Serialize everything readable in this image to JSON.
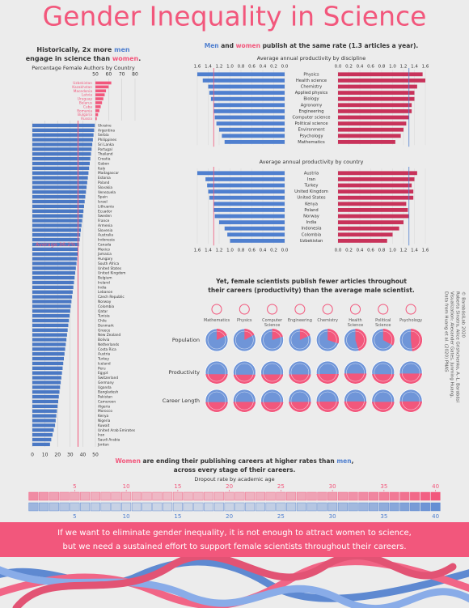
{
  "header": {
    "title": "Gender Inequality in Science"
  },
  "chart_data": [
    {
      "type": "bar",
      "heading_lines": [
        [
          {
            "text": "Historically, 2x more "
          },
          {
            "text": "men",
            "color": "#4f7fcf"
          }
        ],
        [
          {
            "text": "engage in science than "
          },
          {
            "text": "women",
            "color": "#f2577c"
          },
          {
            "text": "."
          }
        ]
      ],
      "subtitle": "Percentage Female Authors by Country",
      "categories": [
        "Uzbekistan",
        "Kazakhstan",
        "Macedonia",
        "Latvia",
        "Uruguay",
        "Belarus",
        "Cuba",
        "Romania",
        "Bulgaria",
        "Russia"
      ],
      "values": [
        62,
        60,
        58,
        57,
        56,
        55,
        54,
        53,
        52,
        51
      ],
      "color": "#f2577c",
      "xlim": [
        50,
        80
      ],
      "xticks": [
        50,
        60,
        70,
        80
      ],
      "grid": true
    },
    {
      "type": "bar",
      "categories": [
        "Ukraine",
        "Argentina",
        "Serbia",
        "Philippines",
        "Sri Lanka",
        "Portugal",
        "Thailand",
        "Croatia",
        "Gabon",
        "Italy",
        "Madagascar",
        "Estonia",
        "Poland",
        "Slovakia",
        "Venezuela",
        "Spain",
        "Israel",
        "Lithuania",
        "Ecuador",
        "Sweden",
        "France",
        "Armenia",
        "Slovenia",
        "Australia",
        "Indonesia",
        "Canada",
        "Mexico",
        "Jamaica",
        "Hungary",
        "South Africa",
        "United States",
        "United Kingdom",
        "Belgium",
        "Ireland",
        "India",
        "Lebanon",
        "Czech Republic",
        "Norway",
        "Colombia",
        "Qatar",
        "Tunisia",
        "Chile",
        "Denmark",
        "Greece",
        "New Zealand",
        "Bolivia",
        "Netherlands",
        "Costa Rica",
        "Austria",
        "Turkey",
        "Iceland",
        "Peru",
        "Egypt",
        "Switzerland",
        "Germany",
        "Uganda",
        "Bangladesh",
        "Pakistan",
        "Cameroon",
        "Algeria",
        "Morocco",
        "Kenya",
        "Nigeria",
        "Kuwait",
        "United Arab Emirates",
        "Iran",
        "Saudi Arabia",
        "Jordan"
      ],
      "values": [
        49.5,
        49,
        48.5,
        48,
        47.5,
        47,
        46.5,
        46,
        45.5,
        45,
        44.5,
        44,
        43.5,
        43,
        42.5,
        42,
        41.5,
        41,
        40.5,
        40,
        39.5,
        39,
        38.5,
        38,
        37.5,
        37,
        36.5,
        36,
        35.5,
        35,
        34.5,
        34,
        33.5,
        33,
        32.5,
        32,
        31.5,
        31,
        30.5,
        30,
        29.5,
        29,
        28.5,
        28,
        27.5,
        27,
        26.5,
        26,
        25.5,
        25,
        24.5,
        24,
        23.5,
        23,
        22.5,
        22,
        21.5,
        21,
        20.5,
        20,
        19.5,
        19,
        18.5,
        18,
        17,
        16,
        15,
        14
      ],
      "color": "#4a78c4",
      "xlim": [
        0,
        50
      ],
      "xticks": [
        0,
        10,
        20,
        30,
        40,
        50
      ],
      "grid": true,
      "annotation": {
        "value": 36.2,
        "label": "Average 36.2%",
        "color": "#f2577c"
      }
    },
    {
      "type": "butterfly",
      "heading_lines": [
        [
          {
            "text": "Men",
            "color": "#4f7fcf"
          },
          {
            "text": " and "
          },
          {
            "text": "women",
            "color": "#f2577c"
          },
          {
            "text": " publish at the same rate (1.3 articles a year)."
          }
        ]
      ],
      "subtitle": "Average annual productivity by discipline",
      "categories": [
        "Physics",
        "Health science",
        "Chemistry",
        "Applied physics",
        "Biology",
        "Agronomy",
        "Engineering",
        "Computer science",
        "Political science",
        "Environment",
        "Psychology",
        "Mathematics"
      ],
      "series": [
        {
          "color": "#4f7fcf",
          "values": [
            1.6,
            1.5,
            1.4,
            1.38,
            1.35,
            1.3,
            1.3,
            1.28,
            1.25,
            1.2,
            1.15,
            1.1
          ]
        },
        {
          "color": "#c8325a",
          "values": [
            1.55,
            1.6,
            1.45,
            1.4,
            1.4,
            1.35,
            1.35,
            1.3,
            1.25,
            1.2,
            1.15,
            1.05
          ]
        }
      ],
      "xlim": [
        0,
        1.6
      ],
      "xticks": [
        {
          "value": 0,
          "label": "0.0"
        },
        0.2,
        0.4,
        0.6,
        0.8,
        {
          "value": 1,
          "label": "1.0"
        },
        1.2,
        1.4,
        1.6
      ],
      "average": 1.3
    },
    {
      "type": "butterfly",
      "subtitle": "Average annual productivity by country",
      "categories": [
        "Austria",
        "Iran",
        "Turkey",
        "United Kingdom",
        "United States",
        "Kenya",
        "Poland",
        "Norway",
        "India",
        "Indonesia",
        "Colombia",
        "Uzbekistan"
      ],
      "series": [
        {
          "color": "#4f7fcf",
          "values": [
            1.6,
            1.45,
            1.42,
            1.4,
            1.38,
            1.3,
            1.3,
            1.28,
            1.2,
            1.1,
            1.05,
            1.0
          ]
        },
        {
          "color": "#c8325a",
          "values": [
            1.45,
            1.4,
            1.35,
            1.38,
            1.38,
            1.25,
            1.28,
            1.3,
            1.2,
            1.12,
            1.0,
            0.9
          ]
        }
      ],
      "xlim": [
        0,
        1.6
      ],
      "xticks": [
        {
          "value": 0,
          "label": "0.0"
        },
        0.2,
        0.4,
        0.6,
        0.8,
        {
          "value": 1,
          "label": "1.0"
        },
        1.2,
        1.4,
        1.6
      ],
      "average": 1.3
    },
    {
      "type": "pie",
      "heading_lines": [
        [
          {
            "text": "Yet, female scientists publish fewer articles throughout"
          }
        ],
        [
          {
            "text": "their careers (productivity) than the average male scientist."
          }
        ]
      ],
      "categories": [
        "Mathematics",
        "Physics",
        "Computer Science",
        "Engineering",
        "Chemistry",
        "Health Science",
        "Political Science",
        "Psychology"
      ],
      "color": "#f2577c",
      "background_color": "#6f95d8",
      "series": [
        {
          "name": "Population",
          "values": [
            18,
            17,
            20,
            18,
            30,
            45,
            33,
            48
          ]
        },
        {
          "name": "Productivity",
          "values": [
            42,
            40,
            41,
            41,
            43,
            45,
            42,
            45
          ]
        },
        {
          "name": "Career Length",
          "values": [
            44,
            45,
            44,
            45,
            46,
            47,
            45,
            47
          ]
        }
      ]
    },
    {
      "type": "heatmap",
      "heading_lines": [
        [
          {
            "text": "Women",
            "color": "#f2577c"
          },
          {
            "text": " are ending their publishing careers at higher rates than "
          },
          {
            "text": "men",
            "color": "#4f7fcf"
          },
          {
            "text": ","
          }
        ],
        [
          {
            "text": "across every stage of their careers."
          }
        ]
      ],
      "subtitle": "Dropout rate by academic age",
      "x": [
        1,
        2,
        3,
        4,
        5,
        6,
        7,
        8,
        9,
        10,
        11,
        12,
        13,
        14,
        15,
        16,
        17,
        18,
        19,
        20,
        21,
        22,
        23,
        24,
        25,
        26,
        27,
        28,
        29,
        30,
        31,
        32,
        33,
        34,
        35,
        36,
        37,
        38,
        39,
        40
      ],
      "xticks": [
        5,
        10,
        15,
        20,
        25,
        30,
        35,
        40
      ],
      "series": [
        {
          "color": "#f2577c",
          "values": [
            8.2,
            7.5,
            7.0,
            6.8,
            6.5,
            6.3,
            6.2,
            6.0,
            5.9,
            5.8,
            5.8,
            5.7,
            5.7,
            5.6,
            5.6,
            5.6,
            5.7,
            5.7,
            5.8,
            5.8,
            5.9,
            6.0,
            6.1,
            6.2,
            6.3,
            6.5,
            6.7,
            6.9,
            7.1,
            7.3,
            7.6,
            7.9,
            8.2,
            8.5,
            8.9,
            9.3,
            9.7,
            10.2,
            10.7,
            11.2
          ]
        },
        {
          "color": "#4f7fcf",
          "values": [
            7.0,
            6.3,
            5.8,
            5.6,
            5.3,
            5.1,
            5.0,
            4.8,
            4.7,
            4.6,
            4.6,
            4.5,
            4.5,
            4.4,
            4.4,
            4.4,
            4.5,
            4.5,
            4.6,
            4.6,
            4.7,
            4.8,
            4.9,
            5.0,
            5.1,
            5.3,
            5.5,
            5.7,
            5.9,
            6.1,
            6.4,
            6.7,
            7.0,
            7.3,
            7.7,
            8.1,
            8.5,
            9.0,
            9.5,
            10.0
          ]
        }
      ]
    }
  ],
  "banner": {
    "lines": [
      "If we want to eliminate gender inequality, it is not enough to attract women to science,",
      "but we need a sustained effort to support female scientists throughout their careers."
    ]
  },
  "credits": [
    "Data from Huang et al. (2020) PNAS",
    "Visualization: Alexander Gates, Junming Huang,",
    "Roberta Sinatra, Alice Grishchenko, A.-L. Barabási",
    "© BarabásiLab 2020"
  ]
}
